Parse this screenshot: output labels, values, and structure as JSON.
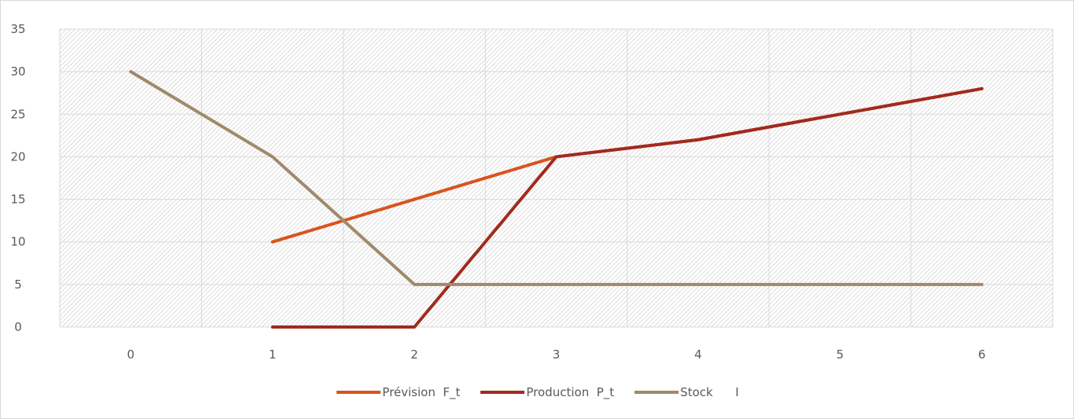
{
  "chart_data": {
    "type": "line",
    "x": [
      0,
      1,
      2,
      3,
      4,
      5,
      6
    ],
    "x_tick_labels": [
      "0",
      "1",
      "2",
      "3",
      "4",
      "5",
      "6"
    ],
    "y_tick_labels": [
      "0",
      "5",
      "10",
      "15",
      "20",
      "25",
      "30",
      "35"
    ],
    "ylim": [
      0,
      35
    ],
    "grid": true,
    "legend_position": "bottom",
    "series": [
      {
        "name": "Prévision  F_t",
        "color": "#d9541e",
        "points": [
          [
            1,
            10
          ],
          [
            2,
            15
          ],
          [
            3,
            20
          ],
          [
            4,
            22
          ],
          [
            5,
            25
          ],
          [
            6,
            28
          ]
        ]
      },
      {
        "name": "Production  P_t",
        "color": "#a02b1e",
        "points": [
          [
            1,
            0
          ],
          [
            2,
            0
          ],
          [
            3,
            20
          ],
          [
            4,
            22
          ],
          [
            5,
            25
          ],
          [
            6,
            28
          ]
        ]
      },
      {
        "name": "Stock      I",
        "color": "#a0896b",
        "points": [
          [
            0,
            30
          ],
          [
            1,
            20
          ],
          [
            2,
            5
          ],
          [
            3,
            5
          ],
          [
            4,
            5
          ],
          [
            5,
            5
          ],
          [
            6,
            5
          ]
        ]
      }
    ]
  }
}
